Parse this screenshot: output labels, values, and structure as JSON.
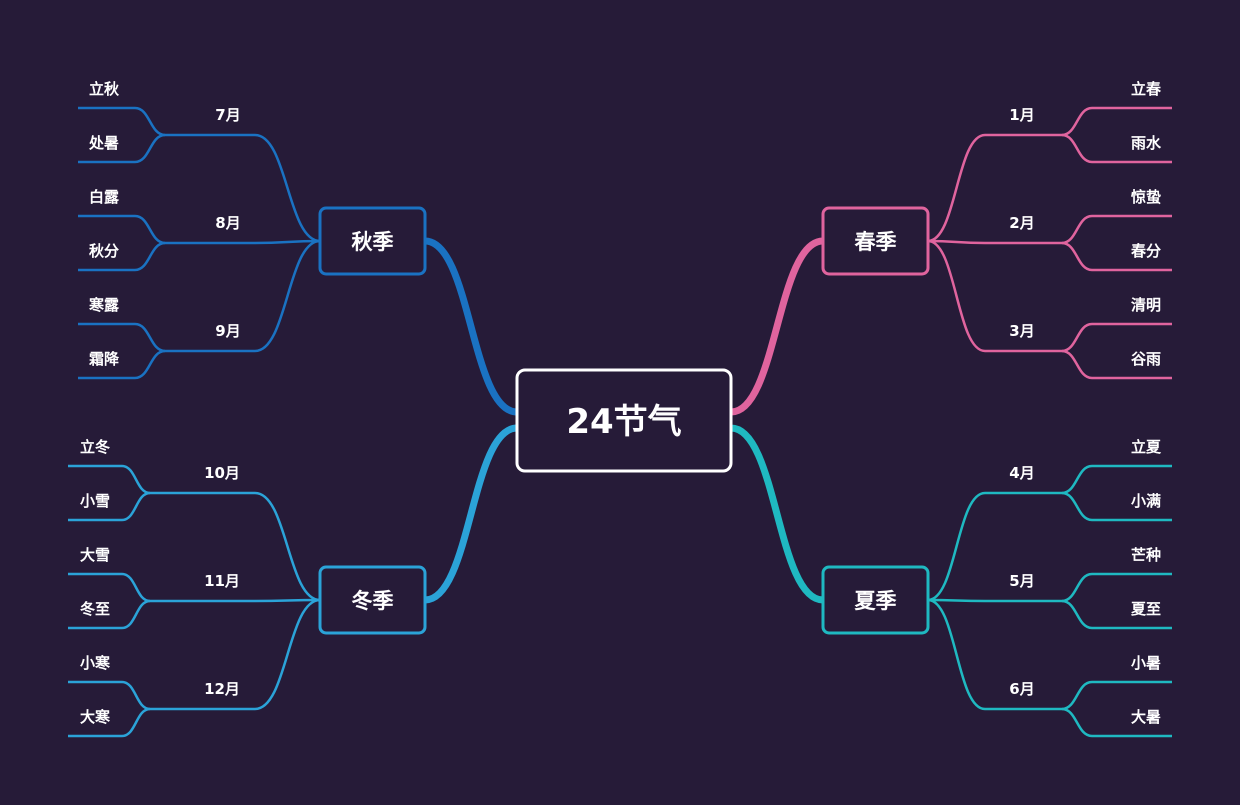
{
  "root": {
    "label": "24节气",
    "color": "#ffffff"
  },
  "background": "#261b38",
  "seasons": [
    {
      "label": "春季",
      "color": "#e0649e",
      "side": "right",
      "position": "top",
      "months": [
        {
          "label": "1月",
          "terms": [
            "立春",
            "雨水"
          ]
        },
        {
          "label": "2月",
          "terms": [
            "惊蛰",
            "春分"
          ]
        },
        {
          "label": "3月",
          "terms": [
            "清明",
            "谷雨"
          ]
        }
      ]
    },
    {
      "label": "夏季",
      "color": "#1fb9c1",
      "side": "right",
      "position": "bottom",
      "months": [
        {
          "label": "4月",
          "terms": [
            "立夏",
            "小满"
          ]
        },
        {
          "label": "5月",
          "terms": [
            "芒种",
            "夏至"
          ]
        },
        {
          "label": "6月",
          "terms": [
            "小暑",
            "大暑"
          ]
        }
      ]
    },
    {
      "label": "秋季",
      "color": "#1a72c2",
      "side": "left",
      "position": "top",
      "months": [
        {
          "label": "7月",
          "terms": [
            "立秋",
            "处暑"
          ]
        },
        {
          "label": "8月",
          "terms": [
            "白露",
            "秋分"
          ]
        },
        {
          "label": "9月",
          "terms": [
            "寒露",
            "霜降"
          ]
        }
      ]
    },
    {
      "label": "冬季",
      "color": "#2ba3d8",
      "side": "left",
      "position": "bottom",
      "months": [
        {
          "label": "10月",
          "terms": [
            "立冬",
            "小雪"
          ]
        },
        {
          "label": "11月",
          "terms": [
            "大雪",
            "冬至"
          ]
        },
        {
          "label": "12月",
          "terms": [
            "小寒",
            "大寒"
          ]
        }
      ]
    }
  ]
}
